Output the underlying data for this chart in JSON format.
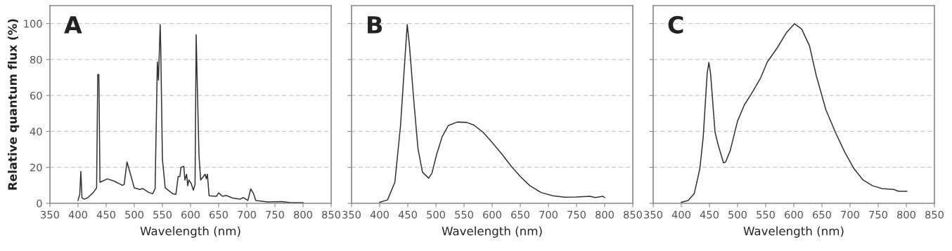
{
  "chart_data": [
    {
      "type": "line",
      "xlabel": "Wavelength (nm)",
      "ylabel": "Relative quantum flux (%)",
      "annotations": [
        "A"
      ],
      "xlim": [
        350,
        850
      ],
      "xticks": [
        350,
        400,
        450,
        500,
        550,
        600,
        650,
        700,
        750,
        800,
        850
      ],
      "ylim": [
        0,
        110
      ],
      "yticks": [
        0,
        20,
        40,
        60,
        80,
        100
      ],
      "grid": "y",
      "series": [
        {
          "color": "#333333",
          "x": [
            400,
            403,
            405,
            407,
            411,
            417,
            427,
            433,
            435,
            437,
            439,
            452,
            464,
            479,
            482,
            487,
            491,
            500,
            510,
            515,
            526,
            533,
            537,
            541,
            543,
            546,
            547,
            550,
            555,
            568,
            574,
            578,
            581,
            583,
            588,
            590,
            593,
            595,
            597,
            601,
            605,
            608,
            610,
            612,
            615,
            618,
            623,
            626,
            628,
            630,
            633,
            646,
            650,
            657,
            663,
            675,
            688,
            694,
            702,
            707,
            712,
            716,
            737,
            762,
            778,
            800
          ],
          "values": [
            1.6,
            5,
            17.7,
            3,
            2.3,
            3,
            6,
            8.6,
            71.7,
            71.7,
            11.7,
            13.6,
            12.4,
            10,
            10.5,
            23,
            18.7,
            8.6,
            7.7,
            8.2,
            6,
            5.4,
            8.2,
            78.7,
            68.6,
            99.5,
            87.5,
            24.4,
            8.6,
            5.4,
            5,
            14.9,
            14.9,
            20,
            20.6,
            13,
            16.2,
            9.8,
            13,
            11.1,
            7.3,
            10.5,
            93.8,
            66,
            26.9,
            13,
            14.9,
            16.2,
            13.6,
            16.2,
            4.2,
            3.9,
            5.8,
            3.9,
            4.4,
            2.9,
            2.3,
            3.2,
            1.6,
            8,
            5.4,
            1.6,
            0.8,
            1,
            0.4,
            0.4
          ]
        }
      ]
    },
    {
      "type": "line",
      "xlabel": "Wavelength (nm)",
      "annotations": [
        "B"
      ],
      "xlim": [
        350,
        850
      ],
      "xticks": [
        350,
        400,
        450,
        500,
        550,
        600,
        650,
        700,
        750,
        800,
        850
      ],
      "ylim": [
        0,
        110
      ],
      "yticks": [
        0,
        20,
        40,
        60,
        80,
        100
      ],
      "tick_labels": "x",
      "grid": "y",
      "series": [
        {
          "color": "#333333",
          "x": [
            400,
            414,
            427,
            437,
            445,
            449,
            453,
            460,
            468,
            476,
            487,
            493,
            501,
            511,
            522,
            538,
            555,
            567,
            584,
            600,
            617,
            634,
            650,
            667,
            687,
            708,
            729,
            749,
            774,
            783,
            797,
            800
          ],
          "values": [
            0.6,
            1.9,
            11.7,
            43,
            81,
            99.5,
            87.5,
            59.7,
            30.7,
            17.4,
            14,
            16.8,
            26.9,
            37,
            43.3,
            45.2,
            45,
            43.6,
            39.5,
            33.8,
            27.5,
            20.6,
            14.9,
            9.8,
            6,
            4.2,
            3.4,
            3.5,
            3.9,
            3.2,
            3.9,
            3.2
          ]
        }
      ]
    },
    {
      "type": "line",
      "xlabel": "Wavelength (nm)",
      "annotations": [
        "C"
      ],
      "xlim": [
        350,
        850
      ],
      "xticks": [
        350,
        400,
        450,
        500,
        550,
        600,
        650,
        700,
        750,
        800,
        850
      ],
      "ylim": [
        0,
        110
      ],
      "yticks": [
        0,
        20,
        40,
        60,
        80,
        100
      ],
      "tick_labels": "x",
      "grid": "y",
      "series": [
        {
          "color": "#333333",
          "x": [
            400,
            412,
            423,
            433,
            439,
            446,
            449,
            452,
            460,
            466,
            475,
            479,
            487,
            500,
            512,
            527,
            541,
            553,
            570,
            587,
            601,
            614,
            628,
            640,
            657,
            674,
            690,
            707,
            723,
            740,
            757,
            778,
            786,
            801
          ],
          "values": [
            0.6,
            1.6,
            5.4,
            19.3,
            37,
            72.3,
            78.4,
            72.3,
            39.5,
            32,
            22.5,
            23.1,
            29.4,
            45.8,
            54.7,
            62.2,
            69.8,
            78.7,
            86.2,
            95,
            99.9,
            97,
            87.5,
            71,
            52.1,
            39.5,
            28.8,
            19.3,
            13,
            9.8,
            8.2,
            7.7,
            6.7,
            6.7
          ]
        }
      ]
    }
  ]
}
